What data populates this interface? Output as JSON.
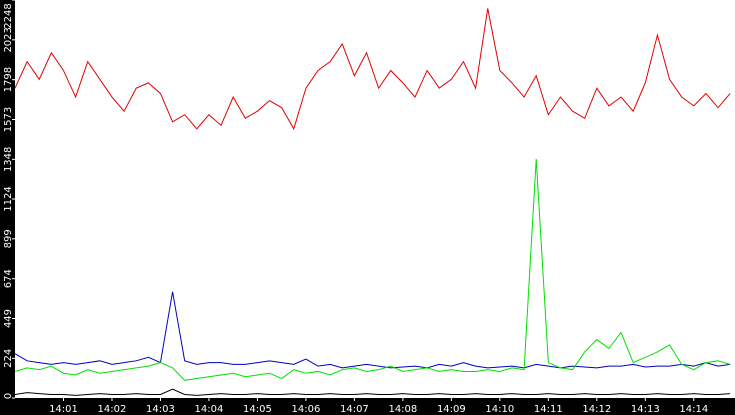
{
  "chart_data": {
    "type": "line",
    "x": [
      0,
      0.25,
      0.5,
      0.75,
      1,
      1.25,
      1.5,
      1.75,
      2,
      2.25,
      2.5,
      2.75,
      3,
      3.25,
      3.5,
      3.75,
      4,
      4.25,
      4.5,
      4.75,
      5,
      5.25,
      5.5,
      5.75,
      6,
      6.25,
      6.5,
      6.75,
      7,
      7.25,
      7.5,
      7.75,
      8,
      8.25,
      8.5,
      8.75,
      9,
      9.25,
      9.5,
      9.75,
      10,
      10.25,
      10.5,
      10.75,
      11,
      11.25,
      11.5,
      11.75,
      12,
      12.25,
      12.5,
      12.75,
      13,
      13.25,
      13.5,
      13.75,
      14,
      14.25,
      14.5,
      14.75
    ],
    "series": [
      {
        "color": "#e00000",
        "values": [
          1750,
          1900,
          1800,
          1950,
          1850,
          1700,
          1900,
          1800,
          1700,
          1620,
          1750,
          1780,
          1720,
          1560,
          1600,
          1520,
          1600,
          1540,
          1700,
          1580,
          1620,
          1680,
          1640,
          1520,
          1750,
          1850,
          1900,
          2000,
          1820,
          1950,
          1750,
          1850,
          1780,
          1700,
          1850,
          1750,
          1800,
          1900,
          1750,
          2200,
          1850,
          1780,
          1700,
          1820,
          1600,
          1700,
          1620,
          1580,
          1750,
          1650,
          1700,
          1620,
          1780,
          2050,
          1800,
          1700,
          1650,
          1720,
          1640,
          1720
        ]
      },
      {
        "color": "#0000c0",
        "values": [
          250,
          210,
          200,
          190,
          200,
          190,
          200,
          210,
          190,
          200,
          210,
          230,
          200,
          600,
          210,
          190,
          200,
          200,
          190,
          190,
          200,
          210,
          200,
          190,
          220,
          180,
          190,
          170,
          180,
          190,
          180,
          170,
          175,
          180,
          170,
          190,
          180,
          200,
          180,
          170,
          175,
          180,
          170,
          190,
          180,
          170,
          180,
          175,
          170,
          180,
          180,
          190,
          175,
          180,
          180,
          190,
          180,
          200,
          180,
          190
        ]
      },
      {
        "color": "#00e000",
        "values": [
          150,
          170,
          160,
          180,
          140,
          130,
          160,
          140,
          150,
          160,
          170,
          180,
          200,
          170,
          100,
          110,
          120,
          130,
          140,
          120,
          130,
          140,
          110,
          160,
          140,
          150,
          130,
          160,
          170,
          150,
          160,
          180,
          150,
          160,
          170,
          150,
          160,
          150,
          150,
          160,
          150,
          170,
          160,
          1350,
          200,
          170,
          160,
          260,
          330,
          280,
          370,
          200,
          230,
          260,
          300,
          190,
          160,
          200,
          210,
          190
        ]
      },
      {
        "color": "#000000",
        "values": [
          20,
          30,
          25,
          20,
          20,
          15,
          20,
          25,
          20,
          20,
          25,
          20,
          20,
          50,
          20,
          15,
          20,
          25,
          20,
          20,
          25,
          20,
          20,
          25,
          20,
          20,
          25,
          20,
          20,
          25,
          20,
          20,
          25,
          20,
          20,
          25,
          20,
          20,
          25,
          20,
          20,
          25,
          20,
          20,
          25,
          20,
          20,
          25,
          20,
          20,
          25,
          20,
          20,
          25,
          20,
          20,
          25,
          20,
          20,
          25
        ]
      }
    ],
    "xlim": [
      0,
      14.85
    ],
    "xticks": [
      {
        "value": 1,
        "label": "14:01"
      },
      {
        "value": 2,
        "label": "14:02"
      },
      {
        "value": 3,
        "label": "14:03"
      },
      {
        "value": 4,
        "label": "14:04"
      },
      {
        "value": 5,
        "label": "14:05"
      },
      {
        "value": 6,
        "label": "14:06"
      },
      {
        "value": 7,
        "label": "14:07"
      },
      {
        "value": 8,
        "label": "14:08"
      },
      {
        "value": 9,
        "label": "14:09"
      },
      {
        "value": 10,
        "label": "14:10"
      },
      {
        "value": 11,
        "label": "14:11"
      },
      {
        "value": 12,
        "label": "14:12"
      },
      {
        "value": 13,
        "label": "14:13"
      },
      {
        "value": 14,
        "label": "14:14"
      }
    ],
    "ylim": [
      0,
      2248
    ],
    "yticks": [
      0,
      224,
      449,
      674,
      899,
      1124,
      1348,
      1573,
      1798,
      2023,
      2248
    ]
  }
}
